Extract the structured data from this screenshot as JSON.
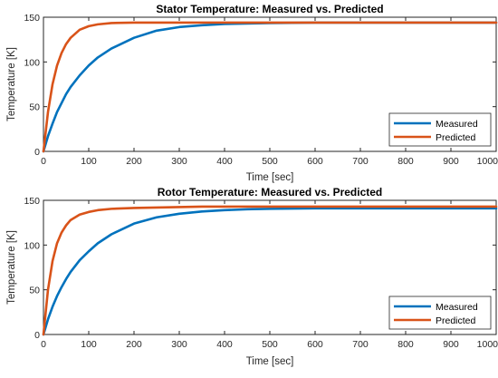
{
  "chart_data": [
    {
      "type": "line",
      "title": "Stator Temperature: Measured vs. Predicted",
      "xlabel": "Time [sec]",
      "ylabel": "Temperature [K]",
      "xlim": [
        0,
        1000
      ],
      "ylim": [
        0,
        150
      ],
      "xticks": [
        0,
        100,
        200,
        300,
        400,
        500,
        600,
        700,
        800,
        900,
        1000
      ],
      "yticks": [
        0,
        50,
        100,
        150
      ],
      "grid": false,
      "legend_position": "bottom-right",
      "x": [
        0,
        10,
        20,
        30,
        40,
        50,
        60,
        80,
        100,
        120,
        150,
        200,
        250,
        300,
        350,
        400,
        450,
        500,
        600,
        700,
        800,
        900,
        1000
      ],
      "series": [
        {
          "name": "Measured",
          "color": "#0072BD",
          "values": [
            0,
            17,
            31,
            44,
            54,
            64,
            72,
            85,
            96,
            105,
            115,
            127,
            135,
            139,
            141,
            142.5,
            143,
            143.5,
            144,
            144,
            144,
            144,
            144
          ]
        },
        {
          "name": "Predicted",
          "color": "#D95319",
          "values": [
            0,
            44,
            75,
            96,
            110,
            120,
            127,
            136,
            140,
            142,
            143.5,
            144,
            144,
            144,
            144,
            144,
            144,
            144,
            144,
            144,
            144,
            144,
            144
          ]
        }
      ]
    },
    {
      "type": "line",
      "title": "Rotor Temperature: Measured vs. Predicted",
      "xlabel": "Time [sec]",
      "ylabel": "Temperature [K]",
      "xlim": [
        0,
        1000
      ],
      "ylim": [
        0,
        150
      ],
      "xticks": [
        0,
        100,
        200,
        300,
        400,
        500,
        600,
        700,
        800,
        900,
        1000
      ],
      "yticks": [
        0,
        50,
        100,
        150
      ],
      "grid": false,
      "legend_position": "bottom-right",
      "x": [
        0,
        10,
        20,
        30,
        40,
        50,
        60,
        80,
        100,
        120,
        150,
        200,
        250,
        300,
        350,
        400,
        450,
        500,
        600,
        700,
        800,
        900,
        1000
      ],
      "series": [
        {
          "name": "Measured",
          "color": "#0072BD",
          "values": [
            0,
            17,
            31,
            43,
            53,
            62,
            70,
            83,
            93,
            102,
            112,
            124,
            131,
            135,
            137.5,
            139,
            140,
            140.5,
            141,
            141,
            141,
            141,
            141
          ]
        },
        {
          "name": "Predicted",
          "color": "#D95319",
          "values": [
            0,
            50,
            82,
            102,
            114,
            122,
            128,
            134,
            137,
            139,
            140.5,
            141.5,
            142,
            142.5,
            143,
            143,
            143,
            143,
            143,
            143,
            143,
            143,
            143
          ]
        }
      ]
    }
  ]
}
